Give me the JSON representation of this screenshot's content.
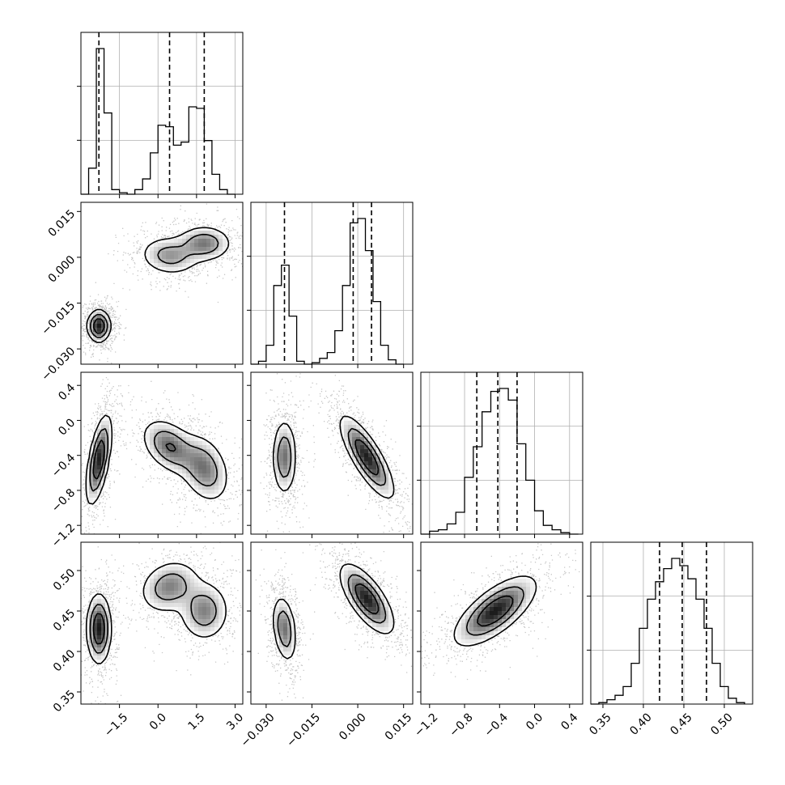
{
  "chart_data": {
    "type": "corner",
    "parameters": 4,
    "axes": [
      {
        "ticks": [
          -1.5,
          0.0,
          1.5,
          3.0
        ],
        "tick_labels": [
          "−1.5",
          "0.0",
          "1.5",
          "3.0"
        ],
        "range": [
          -3.0,
          3.3
        ]
      },
      {
        "ticks": [
          -0.03,
          -0.015,
          0.0,
          0.015
        ],
        "tick_labels": [
          "−0.030",
          "−0.015",
          "0.000",
          "0.015"
        ],
        "range": [
          -0.035,
          0.018
        ]
      },
      {
        "ticks": [
          -1.2,
          -0.8,
          -0.4,
          0.0,
          0.4
        ],
        "tick_labels": [
          "−1.2",
          "−0.8",
          "−0.4",
          "0.0",
          "0.4"
        ],
        "range": [
          -1.3,
          0.55
        ]
      },
      {
        "ticks": [
          0.35,
          0.4,
          0.45,
          0.5
        ],
        "tick_labels": [
          "0.35",
          "0.40",
          "0.45",
          "0.50"
        ],
        "range": [
          0.335,
          0.535
        ]
      }
    ],
    "histograms": [
      {
        "bin_edges": [
          -3.0,
          -2.7,
          -2.4,
          -2.1,
          -1.8,
          -1.5,
          -1.2,
          -0.9,
          -0.6,
          -0.3,
          0.0,
          0.3,
          0.6,
          0.9,
          1.2,
          1.5,
          1.8,
          2.1,
          2.4,
          2.7,
          3.0
        ],
        "counts": [
          0.0,
          0.17,
          0.95,
          0.53,
          0.03,
          0.01,
          0.0,
          0.03,
          0.1,
          0.27,
          0.45,
          0.44,
          0.32,
          0.34,
          0.57,
          0.56,
          0.35,
          0.13,
          0.03,
          0.0
        ],
        "quantiles": [
          -2.3,
          0.45,
          1.8
        ]
      },
      {
        "bin_edges": [
          -0.035,
          -0.0325,
          -0.03,
          -0.0275,
          -0.025,
          -0.0225,
          -0.02,
          -0.0175,
          -0.015,
          -0.0125,
          -0.01,
          -0.0075,
          -0.005,
          -0.0025,
          0.0,
          0.0025,
          0.005,
          0.0075,
          0.01,
          0.0125,
          0.015
        ],
        "counts": [
          0.0,
          0.02,
          0.13,
          0.54,
          0.68,
          0.33,
          0.02,
          0.0,
          0.01,
          0.04,
          0.08,
          0.23,
          0.54,
          0.97,
          1.0,
          0.78,
          0.43,
          0.13,
          0.03,
          0.0
        ],
        "quantiles": [
          -0.024,
          -0.0015,
          0.0045
        ]
      },
      {
        "bin_edges": [
          -1.3,
          -1.2,
          -1.1,
          -1.0,
          -0.9,
          -0.8,
          -0.7,
          -0.6,
          -0.5,
          -0.4,
          -0.3,
          -0.2,
          -0.1,
          0.0,
          0.1,
          0.2,
          0.3,
          0.4,
          0.5
        ],
        "counts": [
          0.0,
          0.02,
          0.03,
          0.07,
          0.15,
          0.39,
          0.6,
          0.84,
          0.98,
          1.0,
          0.92,
          0.62,
          0.37,
          0.16,
          0.06,
          0.03,
          0.01,
          0.0
        ],
        "quantiles": [
          -0.66,
          -0.42,
          -0.2
        ]
      },
      {
        "bin_edges": [
          0.335,
          0.345,
          0.355,
          0.365,
          0.375,
          0.385,
          0.395,
          0.405,
          0.415,
          0.425,
          0.435,
          0.445,
          0.455,
          0.465,
          0.475,
          0.485,
          0.495,
          0.505,
          0.515,
          0.525
        ],
        "counts": [
          0.0,
          0.01,
          0.03,
          0.06,
          0.12,
          0.28,
          0.52,
          0.72,
          0.84,
          0.93,
          1.0,
          0.95,
          0.86,
          0.72,
          0.52,
          0.28,
          0.12,
          0.04,
          0.01
        ],
        "quantiles": [
          0.42,
          0.448,
          0.478
        ]
      }
    ],
    "pairs": [
      {
        "x_param": 0,
        "y_param": 1,
        "modes": [
          {
            "cx": -2.3,
            "cy": -0.0225,
            "sx": 0.23,
            "sy": 0.0027,
            "rho": 0.0,
            "peak": 0.9
          },
          {
            "cx": 0.45,
            "cy": 0.0005,
            "sx": 0.6,
            "sy": 0.0033,
            "rho": -0.1,
            "peak": 0.45
          },
          {
            "cx": 1.8,
            "cy": 0.0045,
            "sx": 0.55,
            "sy": 0.003,
            "rho": 0.0,
            "peak": 0.55
          }
        ]
      },
      {
        "x_param": 0,
        "y_param": 2,
        "modes": [
          {
            "cx": -2.3,
            "cy": -0.45,
            "sx": 0.25,
            "sy": 0.26,
            "rho": 0.6,
            "peak": 0.8
          },
          {
            "cx": 0.45,
            "cy": -0.3,
            "sx": 0.55,
            "sy": 0.16,
            "rho": -0.4,
            "peak": 0.55
          },
          {
            "cx": 1.8,
            "cy": -0.55,
            "sx": 0.5,
            "sy": 0.2,
            "rho": -0.3,
            "peak": 0.5
          }
        ]
      },
      {
        "x_param": 0,
        "y_param": 3,
        "modes": [
          {
            "cx": -2.3,
            "cy": 0.428,
            "sx": 0.24,
            "sy": 0.022,
            "rho": 0.0,
            "peak": 0.85
          },
          {
            "cx": 0.45,
            "cy": 0.48,
            "sx": 0.6,
            "sy": 0.017,
            "rho": 0.2,
            "peak": 0.5
          },
          {
            "cx": 1.8,
            "cy": 0.45,
            "sx": 0.5,
            "sy": 0.019,
            "rho": 0.0,
            "peak": 0.5
          }
        ]
      },
      {
        "x_param": 1,
        "y_param": 2,
        "modes": [
          {
            "cx": -0.024,
            "cy": -0.42,
            "sx": 0.002,
            "sy": 0.22,
            "rho": 0.0,
            "peak": 0.7
          },
          {
            "cx": 0.003,
            "cy": -0.42,
            "sx": 0.0045,
            "sy": 0.24,
            "rho": -0.8,
            "peak": 1.0
          }
        ]
      },
      {
        "x_param": 1,
        "y_param": 3,
        "modes": [
          {
            "cx": -0.024,
            "cy": 0.428,
            "sx": 0.002,
            "sy": 0.021,
            "rho": -0.3,
            "peak": 0.7
          },
          {
            "cx": 0.003,
            "cy": 0.465,
            "sx": 0.0045,
            "sy": 0.022,
            "rho": -0.7,
            "peak": 1.0
          }
        ]
      },
      {
        "x_param": 2,
        "y_param": 3,
        "modes": [
          {
            "cx": -0.45,
            "cy": 0.45,
            "sx": 0.24,
            "sy": 0.022,
            "rho": 0.7,
            "peak": 1.0
          }
        ]
      }
    ],
    "grid": true,
    "contours": true,
    "dashed_quantile_lines": true
  }
}
